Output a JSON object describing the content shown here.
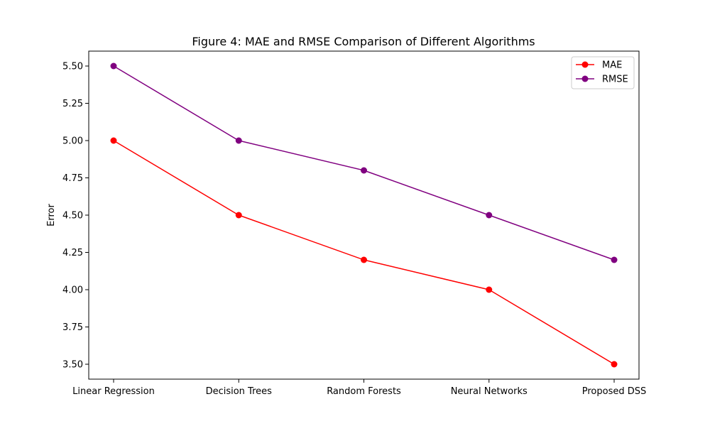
{
  "chart_data": {
    "type": "line",
    "title": "Figure 4: MAE and RMSE Comparison of Different Algorithms",
    "xlabel": "",
    "ylabel": "Error",
    "categories": [
      "Linear Regression",
      "Decision Trees",
      "Random Forests",
      "Neural Networks",
      "Proposed DSS"
    ],
    "series": [
      {
        "name": "MAE",
        "values": [
          5.0,
          4.5,
          4.2,
          4.0,
          3.5
        ],
        "color": "#ff0000",
        "marker": "circle"
      },
      {
        "name": "RMSE",
        "values": [
          5.5,
          5.0,
          4.8,
          4.5,
          4.2
        ],
        "color": "#800080",
        "marker": "circle"
      }
    ],
    "ylim": [
      3.4,
      5.6
    ],
    "yticks": [
      3.5,
      3.75,
      4.0,
      4.25,
      4.5,
      4.75,
      5.0,
      5.25,
      5.5
    ],
    "ytick_labels": [
      "3.50",
      "3.75",
      "4.00",
      "4.25",
      "4.50",
      "4.75",
      "5.00",
      "5.25",
      "5.50"
    ],
    "grid": false,
    "legend_position": "top-right"
  }
}
